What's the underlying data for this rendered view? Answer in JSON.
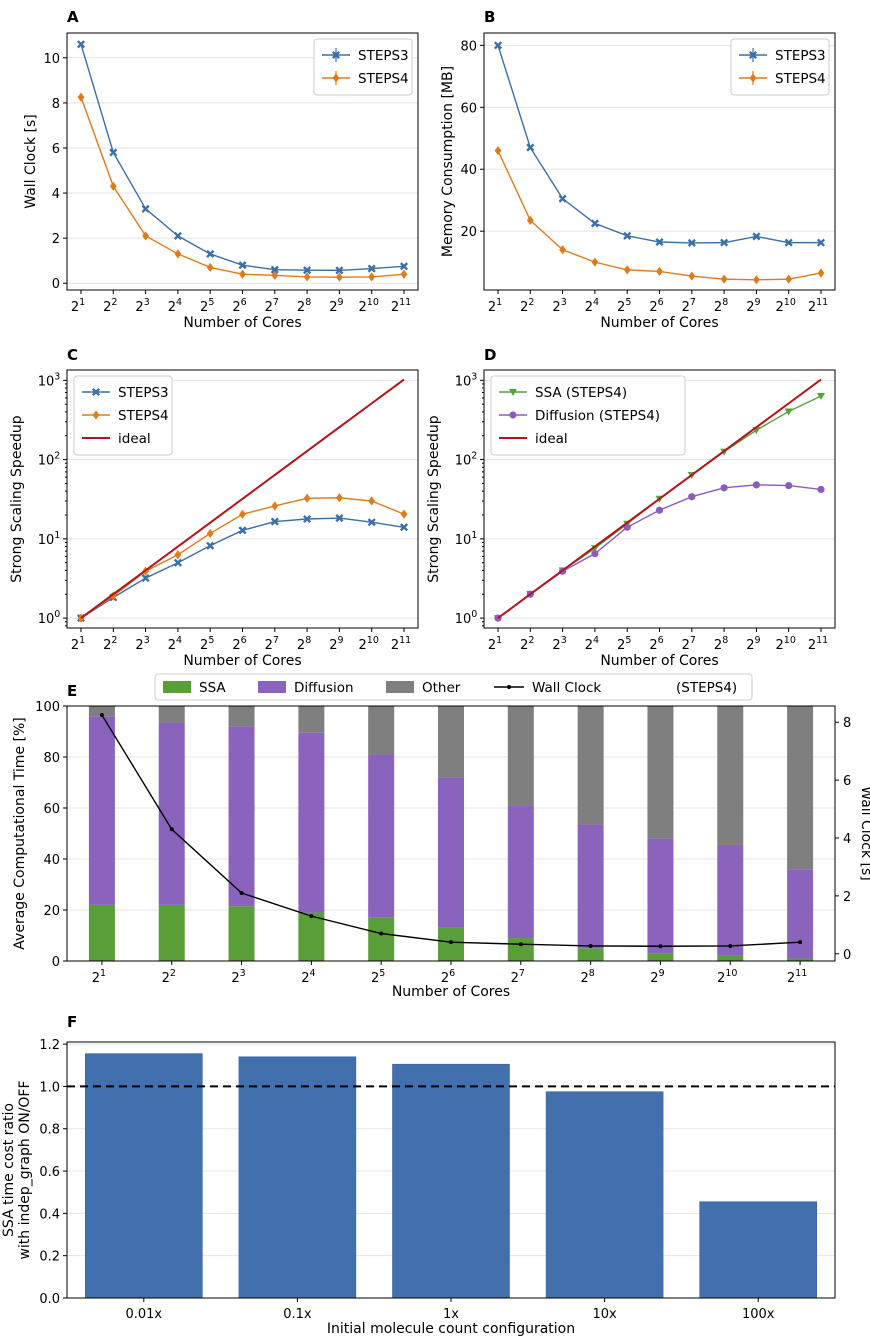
{
  "chart_data": [
    {
      "panel": "A",
      "type": "line",
      "xlabel": "Number of Cores",
      "ylabel": "Wall Clock [s]",
      "x_base": "2",
      "x": [
        1,
        2,
        3,
        4,
        5,
        6,
        7,
        8,
        9,
        10,
        11
      ],
      "ylim": [
        -0.3,
        11.1
      ],
      "yticks": [
        0,
        2,
        4,
        6,
        8,
        10
      ],
      "legend_loc": "top-right",
      "series": [
        {
          "name": "STEPS3",
          "color": "#3b6fa8",
          "marker": "x",
          "values": [
            10.6,
            5.8,
            3.3,
            2.1,
            1.3,
            0.8,
            0.6,
            0.58,
            0.57,
            0.65,
            0.75
          ]
        },
        {
          "name": "STEPS4",
          "color": "#e07b1a",
          "marker": "d",
          "values": [
            8.25,
            4.3,
            2.1,
            1.3,
            0.7,
            0.4,
            0.35,
            0.28,
            0.27,
            0.28,
            0.4
          ]
        }
      ]
    },
    {
      "panel": "B",
      "type": "line",
      "xlabel": "Number of Cores",
      "ylabel": "Memory Consumption [MB]",
      "x_base": "2",
      "x": [
        1,
        2,
        3,
        4,
        5,
        6,
        7,
        8,
        9,
        10,
        11
      ],
      "ylim": [
        1,
        84
      ],
      "yticks": [
        20,
        40,
        60,
        80
      ],
      "legend_loc": "top-right",
      "series": [
        {
          "name": "STEPS3",
          "color": "#3b6fa8",
          "marker": "x",
          "values": [
            80,
            47,
            30.5,
            22.5,
            18.5,
            16.5,
            16.2,
            16.3,
            18.3,
            16.3,
            16.3
          ]
        },
        {
          "name": "STEPS4",
          "color": "#e07b1a",
          "marker": "d",
          "values": [
            46,
            23.5,
            14,
            10,
            7.5,
            7,
            5.5,
            4.5,
            4.3,
            4.5,
            6.5
          ]
        }
      ]
    },
    {
      "panel": "C",
      "type": "line",
      "yscale": "log",
      "xlabel": "Number of Cores",
      "ylabel": "Strong Scaling Speedup",
      "x_base": "2",
      "x": [
        1,
        2,
        3,
        4,
        5,
        6,
        7,
        8,
        9,
        10,
        11
      ],
      "ylim": [
        0.75,
        1350
      ],
      "yticks": [
        1,
        10,
        100,
        1000
      ],
      "ytick_labels": [
        "10",
        "10",
        "10",
        "10"
      ],
      "ytick_exp": [
        "0",
        "1",
        "2",
        "3"
      ],
      "legend_loc": "top-left",
      "series": [
        {
          "name": "STEPS3",
          "color": "#3b6fa8",
          "marker": "x",
          "values": [
            1,
            1.82,
            3.2,
            5,
            8.2,
            12.8,
            16.5,
            17.8,
            18.3,
            16.2,
            14
          ]
        },
        {
          "name": "STEPS4",
          "color": "#e07b1a",
          "marker": "d",
          "values": [
            1,
            1.9,
            3.9,
            6.3,
            11.7,
            20.4,
            26,
            32.5,
            33,
            30,
            20.5
          ]
        },
        {
          "name": "ideal",
          "color": "#b5121b",
          "marker": "",
          "values": [
            1,
            2,
            4,
            8,
            16,
            32,
            64,
            128,
            256,
            512,
            1024
          ]
        }
      ]
    },
    {
      "panel": "D",
      "type": "line",
      "yscale": "log",
      "xlabel": "Number of Cores",
      "ylabel": "Strong Scaling Speedup",
      "x_base": "2",
      "x": [
        1,
        2,
        3,
        4,
        5,
        6,
        7,
        8,
        9,
        10,
        11
      ],
      "ylim": [
        0.75,
        1350
      ],
      "yticks": [
        1,
        10,
        100,
        1000
      ],
      "ytick_labels": [
        "10",
        "10",
        "10",
        "10"
      ],
      "ytick_exp": [
        "0",
        "1",
        "2",
        "3"
      ],
      "legend_loc": "top-left",
      "series": [
        {
          "name": "SSA (STEPS4)",
          "color": "#55a13a",
          "marker": "v",
          "values": [
            1,
            2.02,
            4,
            7.6,
            15.5,
            32,
            64,
            126,
            235,
            405,
            635
          ]
        },
        {
          "name": "Diffusion (STEPS4)",
          "color": "#8b5bc2",
          "marker": "o",
          "values": [
            1,
            2,
            3.9,
            6.5,
            14,
            23,
            34,
            44,
            48,
            47,
            42
          ]
        },
        {
          "name": "ideal",
          "color": "#b5121b",
          "marker": "",
          "values": [
            1,
            2,
            4,
            8,
            16,
            32,
            64,
            128,
            256,
            512,
            1024
          ]
        }
      ]
    },
    {
      "panel": "E",
      "type": "bar",
      "stacked": true,
      "title_note": "(STEPS4)",
      "xlabel": "Number of Cores",
      "ylabel": "Average Computational Time [%]",
      "ylabel_right": "Wall Clock [s]",
      "x_base": "2",
      "x": [
        1,
        2,
        3,
        4,
        5,
        6,
        7,
        8,
        9,
        10,
        11
      ],
      "ylim": [
        0,
        100
      ],
      "yticks": [
        0,
        20,
        40,
        60,
        80,
        100
      ],
      "ylim_right": [
        -0.25,
        8.56
      ],
      "yticks_right": [
        0,
        2,
        4,
        6,
        8
      ],
      "legend_loc": "top-outside",
      "series": [
        {
          "name": "SSA",
          "color": "#5a9e3a",
          "values": [
            22,
            22,
            21.5,
            19,
            17,
            13,
            9,
            5,
            3,
            2,
            1
          ]
        },
        {
          "name": "Diffusion",
          "color": "#8a63bd",
          "values": [
            74,
            71.5,
            70.5,
            70.5,
            64,
            59,
            52,
            48.5,
            45,
            43.5,
            35
          ]
        },
        {
          "name": "Other",
          "color": "#7f7f7f",
          "values": [
            4,
            6.5,
            8,
            10.5,
            19,
            28,
            39,
            46.5,
            52,
            54.5,
            64
          ]
        }
      ],
      "line_series": {
        "name": "Wall Clock",
        "color": "#000000",
        "values": [
          8.25,
          4.3,
          2.1,
          1.3,
          0.7,
          0.4,
          0.33,
          0.27,
          0.26,
          0.27,
          0.4
        ]
      }
    },
    {
      "panel": "F",
      "type": "bar",
      "xlabel": "Initial molecule count configuration",
      "ylabel": "SSA time cost ratio",
      "ylabel_line2": "with indep_graph ON/OFF",
      "categories": [
        "0.01x",
        "0.1x",
        "1x",
        "10x",
        "100x"
      ],
      "values": [
        1.155,
        1.14,
        1.105,
        0.975,
        0.455
      ],
      "color": "#4170ac",
      "reference_line": 1.0,
      "ylim": [
        0,
        1.21
      ],
      "yticks": [
        0.0,
        0.2,
        0.4,
        0.6,
        0.8,
        1.0,
        1.2
      ]
    }
  ]
}
